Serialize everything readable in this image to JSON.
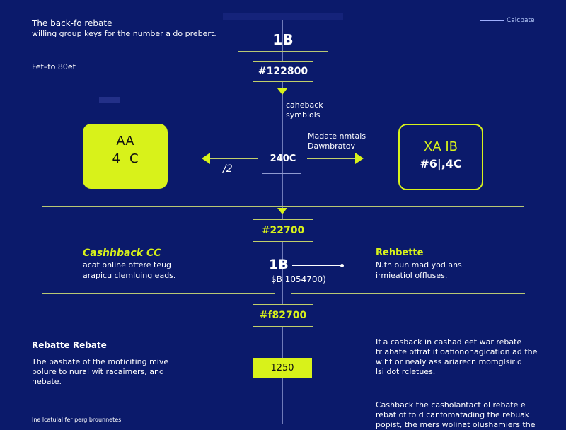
{
  "header": {
    "title": "The back-fo rebate",
    "subtitle": "willing group keys for the number a do prebert.",
    "sub2": "Fet–to 80et",
    "calc_label": "Calcbate",
    "top_center": "1B",
    "top_value": "#122800"
  },
  "center": {
    "symbols": [
      "caheback",
      "symblols"
    ],
    "value_mid": "240C",
    "arrow_left_label": "/2",
    "right_note": [
      "Madate nmtals",
      "Dawnbratov"
    ],
    "value2": "#22700",
    "big": "1B",
    "big_sub": "$B 1054700)",
    "value3": "#f82700",
    "value4": "1250"
  },
  "left_box": {
    "line1": "AA",
    "line2_a": "4",
    "line2_b": "C"
  },
  "right_box": {
    "line1": "XA IB",
    "line2": "#6|,4C"
  },
  "cashback": {
    "title": "Cashhback CC",
    "lines": [
      "acat online offere teug",
      "arapicu clemluing eads."
    ]
  },
  "rebate_right": {
    "title": "Rehbette",
    "lines": [
      "N.th oun mad yod ans",
      "irmieatiol offluses."
    ]
  },
  "rebate_left": {
    "title": "Rebatte Rebate",
    "lines": [
      "The basbate of the moticiting mive",
      "polure to nural wit racaimers, and",
      "hebate."
    ],
    "footer": "Ine lcatulal fer perg brounnetes"
  },
  "right_para1": [
    "If a casback in cashad eet war rebate",
    "tr abate offrat if oafiononagication ad the",
    "wiht or nealy ass ariarecn momglsirid",
    "lsi dot rcletues."
  ],
  "right_para2": [
    "Cashback the casholantact ol rebate e",
    "rebat of fo d canfomatading the rebuak",
    "popist, the mers wolinat olushamiers the"
  ],
  "colors": {
    "background": "#0b1a6b",
    "accent": "#d8f21a"
  }
}
